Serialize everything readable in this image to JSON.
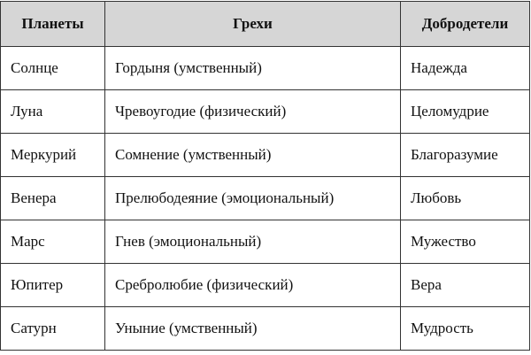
{
  "table": {
    "headers": [
      "Планеты",
      "Грехи",
      "Добродетели"
    ],
    "rows": [
      [
        "Солнце",
        "Гордыня (умственный)",
        "Надежда"
      ],
      [
        "Луна",
        "Чревоугодие (физический)",
        "Целомудрие"
      ],
      [
        "Меркурий",
        "Сомнение (умственный)",
        "Благоразумие"
      ],
      [
        "Венера",
        "Прелюбодеяние (эмоциональный)",
        "Любовь"
      ],
      [
        "Марс",
        "Гнев (эмоциональный)",
        "Мужество"
      ],
      [
        "Юпитер",
        "Сребролюбие (физический)",
        "Вера"
      ],
      [
        "Сатурн",
        "Уныние (умственный)",
        "Мудрость"
      ]
    ],
    "header_color": "#d6d6d6"
  }
}
